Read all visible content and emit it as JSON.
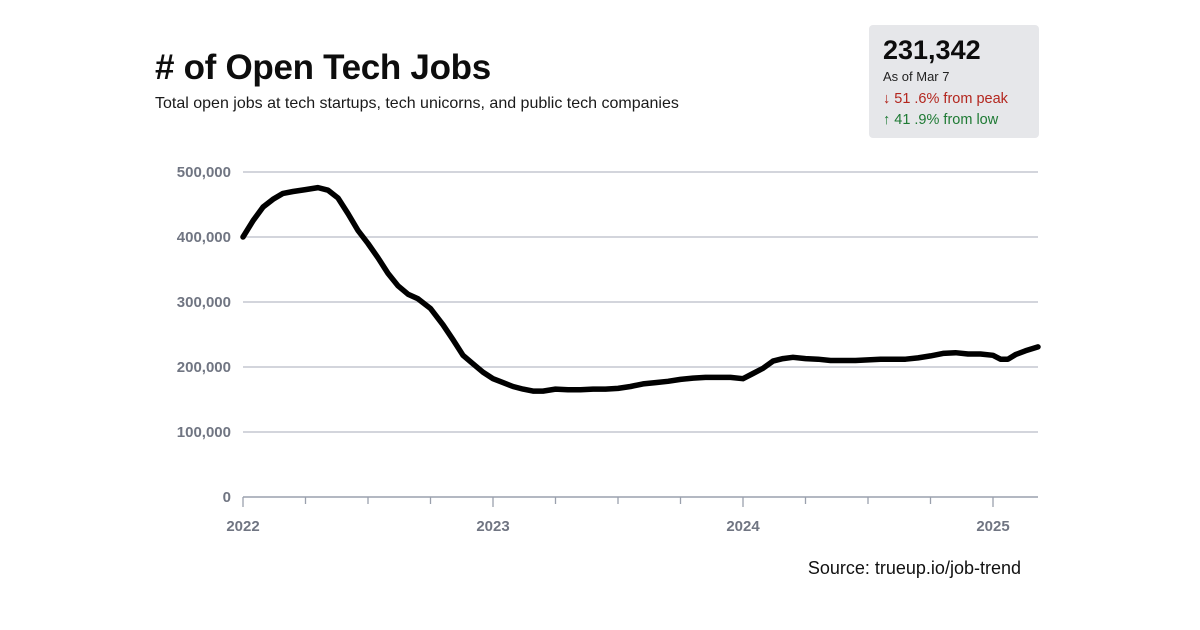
{
  "header": {
    "title": "# of Open Tech Jobs",
    "subtitle": "Total open jobs at tech startups, tech unicorns, and public tech companies"
  },
  "stat_box": {
    "value": "231,342",
    "date": "As of Mar 7",
    "down_arrow": "↓",
    "down_text": "51 .6% from peak",
    "up_arrow": "↑",
    "up_text": "41 .9% from low",
    "down_color": "#b3261e",
    "up_color": "#1e7a34"
  },
  "source": "Source: trueup.io/job-trend",
  "chart_data": {
    "type": "line",
    "title": "# of Open Tech Jobs",
    "subtitle": "Total open jobs at tech startups, tech unicorns, and public tech companies",
    "xlabel": "",
    "ylabel": "",
    "x_ticks": [
      "2022",
      "2023",
      "2024",
      "2025"
    ],
    "y_ticks": [
      "0",
      "100,000",
      "200,000",
      "300,000",
      "400,000",
      "500,000"
    ],
    "y_tick_values": [
      0,
      100000,
      200000,
      300000,
      400000,
      500000
    ],
    "ylim": [
      0,
      500000
    ],
    "xlim": [
      2022.0,
      2025.18
    ],
    "grid": "horizontal",
    "line_color": "#000000",
    "series": [
      {
        "values": [
          [
            2022.0,
            400000
          ],
          [
            2022.04,
            425000
          ],
          [
            2022.08,
            446000
          ],
          [
            2022.12,
            458000
          ],
          [
            2022.16,
            467000
          ],
          [
            2022.2,
            470000
          ],
          [
            2022.25,
            473000
          ],
          [
            2022.3,
            476000
          ],
          [
            2022.34,
            472000
          ],
          [
            2022.38,
            460000
          ],
          [
            2022.42,
            436000
          ],
          [
            2022.46,
            410000
          ],
          [
            2022.5,
            390000
          ],
          [
            2022.54,
            368000
          ],
          [
            2022.58,
            344000
          ],
          [
            2022.62,
            325000
          ],
          [
            2022.66,
            312000
          ],
          [
            2022.7,
            305000
          ],
          [
            2022.75,
            290000
          ],
          [
            2022.8,
            265000
          ],
          [
            2022.84,
            242000
          ],
          [
            2022.88,
            218000
          ],
          [
            2022.92,
            205000
          ],
          [
            2022.96,
            192000
          ],
          [
            2023.0,
            182000
          ],
          [
            2023.04,
            176000
          ],
          [
            2023.08,
            170000
          ],
          [
            2023.12,
            166000
          ],
          [
            2023.16,
            163000
          ],
          [
            2023.2,
            163000
          ],
          [
            2023.25,
            166000
          ],
          [
            2023.3,
            165000
          ],
          [
            2023.35,
            165000
          ],
          [
            2023.4,
            166000
          ],
          [
            2023.45,
            166000
          ],
          [
            2023.5,
            167000
          ],
          [
            2023.55,
            170000
          ],
          [
            2023.6,
            174000
          ],
          [
            2023.65,
            176000
          ],
          [
            2023.7,
            178000
          ],
          [
            2023.75,
            181000
          ],
          [
            2023.8,
            183000
          ],
          [
            2023.85,
            184000
          ],
          [
            2023.9,
            184000
          ],
          [
            2023.95,
            184000
          ],
          [
            2024.0,
            182000
          ],
          [
            2024.04,
            190000
          ],
          [
            2024.08,
            198000
          ],
          [
            2024.12,
            209000
          ],
          [
            2024.16,
            213000
          ],
          [
            2024.2,
            215000
          ],
          [
            2024.25,
            213000
          ],
          [
            2024.3,
            212000
          ],
          [
            2024.35,
            210000
          ],
          [
            2024.4,
            210000
          ],
          [
            2024.45,
            210000
          ],
          [
            2024.5,
            211000
          ],
          [
            2024.55,
            212000
          ],
          [
            2024.6,
            212000
          ],
          [
            2024.65,
            212000
          ],
          [
            2024.7,
            214000
          ],
          [
            2024.75,
            217000
          ],
          [
            2024.8,
            221000
          ],
          [
            2024.85,
            222000
          ],
          [
            2024.9,
            220000
          ],
          [
            2024.95,
            220000
          ],
          [
            2025.0,
            218000
          ],
          [
            2025.03,
            212000
          ],
          [
            2025.06,
            212000
          ],
          [
            2025.09,
            219000
          ],
          [
            2025.13,
            225000
          ],
          [
            2025.18,
            231000
          ]
        ]
      }
    ]
  }
}
